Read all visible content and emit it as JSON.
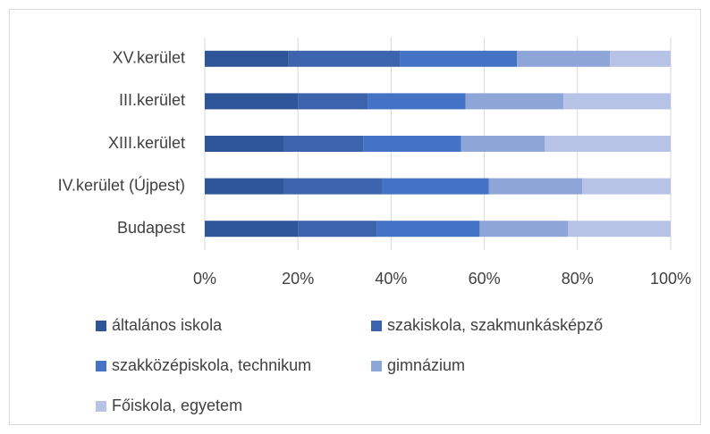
{
  "chart_data": {
    "type": "stacked_barh",
    "categories": [
      "XV.kerület",
      "III.kerület",
      "XIII.kerület",
      "IV.kerület (Újpest)",
      "Budapest"
    ],
    "series": [
      {
        "name": "általános iskola",
        "color": "#2e5597",
        "values": [
          18,
          20,
          17,
          17,
          20
        ]
      },
      {
        "name": "szakiskola, szakmunkásképző",
        "color": "#3b64ad",
        "values": [
          24,
          15,
          17,
          21,
          17
        ]
      },
      {
        "name": "szakközépiskola, technikum",
        "color": "#4472c4",
        "values": [
          25,
          21,
          21,
          23,
          22
        ]
      },
      {
        "name": "gimnázium",
        "color": "#8ea5d7",
        "values": [
          20,
          21,
          18,
          20,
          19
        ]
      },
      {
        "name": "Főiskola, egyetem",
        "color": "#b7c3e6",
        "values": [
          13,
          23,
          27,
          19,
          22
        ]
      }
    ],
    "xlim": [
      0,
      100
    ],
    "xticks": [
      {
        "value": 0,
        "label": "0%"
      },
      {
        "value": 20,
        "label": "20%"
      },
      {
        "value": 40,
        "label": "40%"
      },
      {
        "value": 60,
        "label": "60%"
      },
      {
        "value": 80,
        "label": "80%"
      },
      {
        "value": 100,
        "label": "100%"
      }
    ],
    "grid": true
  }
}
